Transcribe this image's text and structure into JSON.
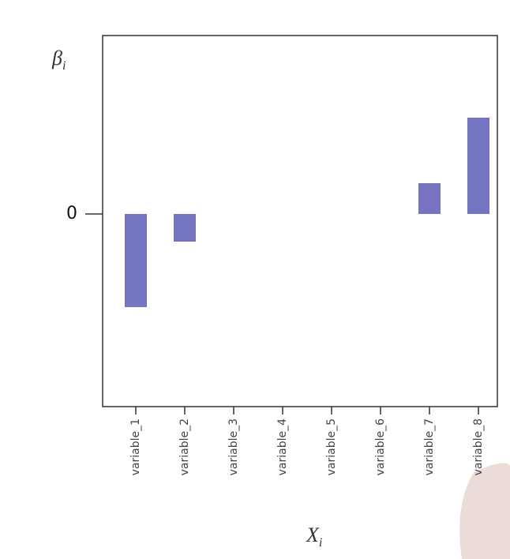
{
  "chart_data": {
    "type": "bar",
    "y_label": {
      "symbol": "β",
      "subscript": "i"
    },
    "x_label": {
      "symbol": "X",
      "subscript": "i"
    },
    "categories": [
      "variable_1",
      "variable_2",
      "variable_3",
      "variable_4",
      "variable_5",
      "variable_6",
      "variable_7",
      "variable_8"
    ],
    "values": [
      -1.18,
      -0.35,
      0,
      0,
      0,
      0,
      0.39,
      1.22
    ],
    "color": "#7474c0",
    "ylim": [
      -2.44,
      2.26
    ],
    "yticks": [
      0
    ],
    "grid": false
  }
}
